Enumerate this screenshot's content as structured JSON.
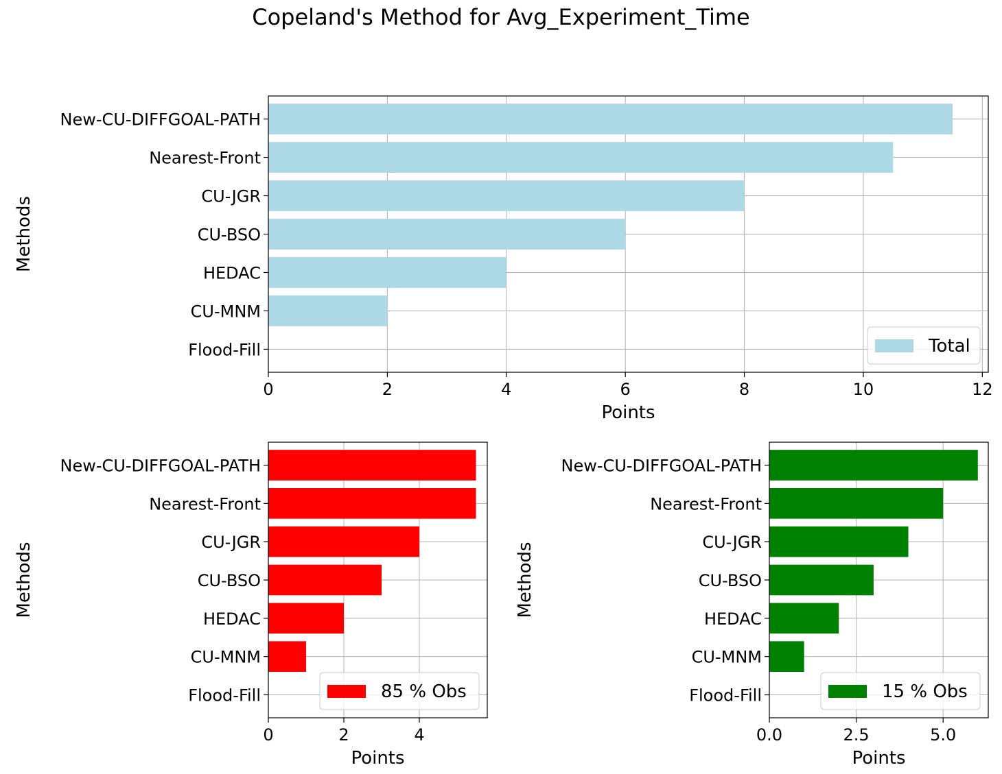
{
  "figure": {
    "title": "Copeland's Method for Avg_Experiment_Time"
  },
  "chart_data": [
    {
      "type": "bar",
      "orientation": "horizontal",
      "title": "",
      "xlabel": "Points",
      "ylabel": "Methods",
      "categories": [
        "New-CU-DIFFGOAL-PATH",
        "Nearest-Front",
        "CU-JGR",
        "CU-BSO",
        "HEDAC",
        "CU-MNM",
        "Flood-Fill"
      ],
      "series": [
        {
          "name": "Total",
          "values": [
            11.5,
            10.5,
            8,
            6,
            4,
            2,
            0
          ],
          "color": "#add8e6"
        }
      ],
      "xlim": [
        0,
        12.1
      ],
      "xticks": [
        0,
        2,
        4,
        6,
        8,
        10,
        12
      ],
      "xtick_labels": [
        "0",
        "2",
        "4",
        "6",
        "8",
        "10",
        "12"
      ],
      "grid": true,
      "legend_position": "lower-right"
    },
    {
      "type": "bar",
      "orientation": "horizontal",
      "title": "",
      "xlabel": "Points",
      "ylabel": "Methods",
      "categories": [
        "New-CU-DIFFGOAL-PATH",
        "Nearest-Front",
        "CU-JGR",
        "CU-BSO",
        "HEDAC",
        "CU-MNM",
        "Flood-Fill"
      ],
      "series": [
        {
          "name": "85 % Obs",
          "values": [
            5.5,
            5.5,
            4,
            3,
            2,
            1,
            0
          ],
          "color": "#ff0000"
        }
      ],
      "xlim": [
        0,
        5.8
      ],
      "xticks": [
        0,
        2,
        4
      ],
      "xtick_labels": [
        "0",
        "2",
        "4"
      ],
      "grid": true,
      "legend_position": "lower-right"
    },
    {
      "type": "bar",
      "orientation": "horizontal",
      "title": "",
      "xlabel": "Points",
      "ylabel": "Methods",
      "categories": [
        "New-CU-DIFFGOAL-PATH",
        "Nearest-Front",
        "CU-JGR",
        "CU-BSO",
        "HEDAC",
        "CU-MNM",
        "Flood-Fill"
      ],
      "series": [
        {
          "name": "15 % Obs",
          "values": [
            6,
            5,
            4,
            3,
            2,
            1,
            0
          ],
          "color": "#008000"
        }
      ],
      "xlim": [
        0,
        6.3
      ],
      "xticks": [
        0,
        2.5,
        5
      ],
      "xtick_labels": [
        "0.0",
        "2.5",
        "5.0"
      ],
      "grid": true,
      "legend_position": "lower-right"
    }
  ]
}
